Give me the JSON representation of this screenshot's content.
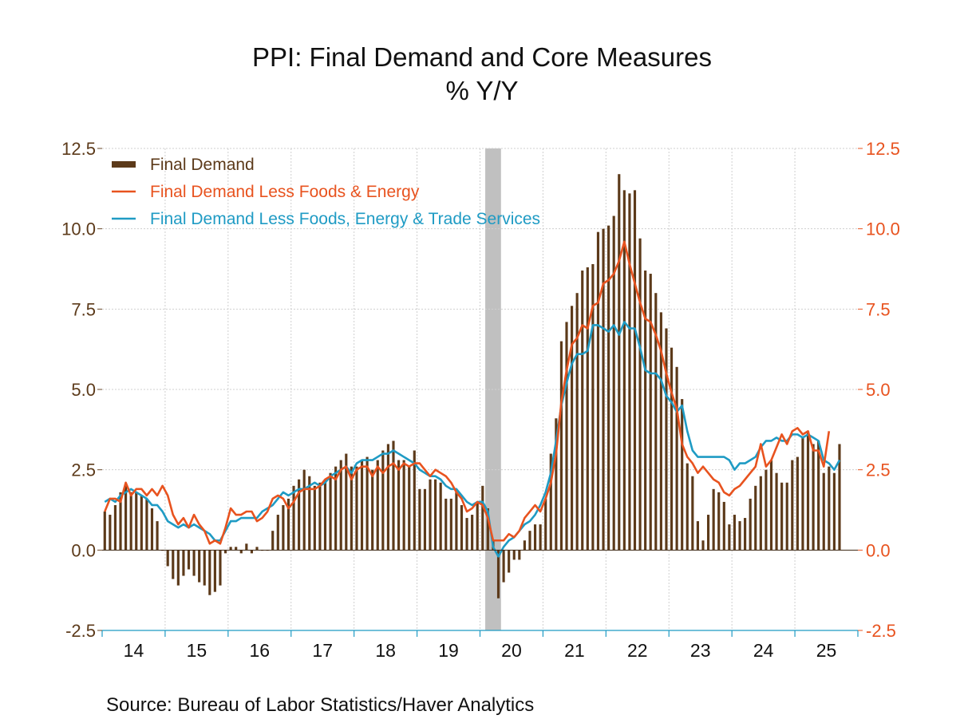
{
  "chart_data": {
    "type": "bar",
    "title": "PPI: Final Demand and Core Measures",
    "subtitle": "% Y/Y",
    "source": "Source:  Bureau of Labor Statistics/Haver Analytics",
    "ylim": [
      -2.5,
      12.5
    ],
    "yticks": [
      "12.5",
      "10.0",
      "7.5",
      "5.0",
      "2.5",
      "0.0",
      "-2.5"
    ],
    "yticks_right": [
      "12.5",
      "10.0",
      "7.5",
      "5.0",
      "2.5",
      "0.0",
      "-2.5"
    ],
    "x_labels": [
      "14",
      "15",
      "16",
      "17",
      "18",
      "19",
      "20",
      "21",
      "22",
      "23",
      "24",
      "25"
    ],
    "grid": true,
    "legend_position": "top-left",
    "start_month": "2014-01",
    "recession_shading": {
      "start": "2020-02",
      "end": "2020-04"
    },
    "colors": {
      "bars": "#5c3a1a",
      "core": "#e8531f",
      "supercore": "#1f9bc4",
      "recession": "#c0c0c0",
      "left_axis_text": "#5c3a1a",
      "right_axis_text": "#e8531f"
    },
    "series": [
      {
        "name": "Final Demand",
        "type": "bar",
        "values": [
          1.2,
          1.1,
          1.4,
          1.8,
          2.0,
          1.8,
          1.8,
          1.7,
          1.6,
          1.3,
          0.9,
          0.0,
          -0.5,
          -0.9,
          -1.1,
          -0.8,
          -0.6,
          -0.8,
          -1.0,
          -1.1,
          -1.4,
          -1.3,
          -1.1,
          -0.1,
          0.1,
          0.1,
          -0.1,
          0.2,
          -0.1,
          0.1,
          0.0,
          0.0,
          0.6,
          1.1,
          1.4,
          1.6,
          2.0,
          2.2,
          2.5,
          2.3,
          2.0,
          2.1,
          2.2,
          2.4,
          2.6,
          2.8,
          3.0,
          2.6,
          2.6,
          2.8,
          2.9,
          2.5,
          2.8,
          3.1,
          3.3,
          3.4,
          2.8,
          2.8,
          2.6,
          3.1,
          1.9,
          1.9,
          2.2,
          2.2,
          2.1,
          1.6,
          1.6,
          1.8,
          1.4,
          1.0,
          1.1,
          1.5,
          2.0,
          1.3,
          0.3,
          -1.5,
          -1.0,
          -0.7,
          -0.3,
          -0.3,
          0.3,
          0.6,
          0.8,
          0.8,
          1.6,
          3.0,
          4.1,
          6.5,
          7.1,
          7.6,
          8.0,
          8.7,
          8.8,
          8.9,
          9.9,
          10.0,
          10.1,
          10.4,
          11.7,
          11.2,
          11.1,
          11.2,
          9.7,
          8.7,
          8.6,
          8.0,
          7.4,
          6.9,
          6.3,
          5.7,
          4.7,
          2.7,
          2.3,
          0.9,
          0.3,
          1.1,
          1.9,
          1.8,
          1.5,
          0.8,
          1.1,
          0.9,
          1.0,
          1.6,
          2.0,
          2.3,
          2.5,
          2.8,
          2.4,
          2.1,
          2.1,
          2.8,
          2.9,
          3.5,
          3.7,
          3.3,
          3.4,
          2.4,
          2.6,
          2.4,
          3.3
        ]
      },
      {
        "name": "Final Demand Less Foods & Energy",
        "type": "line",
        "values": [
          1.2,
          1.6,
          1.6,
          1.5,
          2.1,
          1.7,
          1.9,
          1.9,
          1.7,
          1.9,
          1.7,
          2.0,
          1.7,
          1.1,
          0.8,
          1.0,
          0.7,
          1.1,
          0.8,
          0.6,
          0.2,
          0.3,
          0.2,
          0.7,
          1.3,
          1.1,
          1.1,
          1.2,
          1.2,
          0.9,
          1.0,
          1.2,
          1.6,
          1.7,
          1.6,
          1.3,
          1.5,
          1.8,
          1.9,
          1.9,
          1.9,
          2.0,
          2.2,
          2.3,
          2.2,
          2.5,
          2.6,
          2.2,
          2.5,
          2.6,
          2.6,
          2.3,
          2.6,
          2.4,
          2.6,
          2.7,
          2.5,
          2.7,
          2.6,
          2.7,
          2.7,
          2.5,
          2.3,
          2.5,
          2.4,
          2.3,
          2.1,
          1.8,
          1.6,
          1.2,
          1.3,
          1.5,
          1.4,
          1.0,
          0.3,
          0.3,
          0.3,
          0.5,
          0.4,
          0.6,
          1.0,
          1.2,
          1.4,
          1.2,
          1.6,
          2.1,
          3.0,
          4.6,
          5.6,
          6.4,
          6.6,
          7.0,
          6.9,
          7.6,
          7.7,
          8.3,
          8.4,
          8.6,
          9.0,
          9.6,
          8.9,
          8.3,
          7.7,
          7.2,
          7.1,
          6.7,
          6.2,
          5.5,
          4.9,
          4.4,
          3.3,
          2.9,
          2.7,
          2.4,
          2.6,
          2.4,
          2.2,
          2.1,
          1.8,
          1.7,
          1.9,
          2.0,
          2.2,
          2.4,
          2.6,
          3.3,
          2.6,
          2.8,
          3.2,
          3.6,
          3.3,
          3.7,
          3.8,
          3.6,
          3.7,
          3.1,
          3.1,
          2.6,
          3.7
        ]
      },
      {
        "name": "Final Demand Less Foods, Energy & Trade Services",
        "type": "line",
        "values": [
          1.5,
          1.6,
          1.5,
          1.7,
          1.8,
          1.9,
          1.8,
          1.7,
          1.6,
          1.4,
          1.4,
          1.2,
          0.9,
          0.8,
          0.7,
          0.8,
          0.7,
          0.8,
          0.7,
          0.6,
          0.5,
          0.3,
          0.3,
          0.6,
          0.9,
          0.9,
          1.0,
          1.0,
          1.0,
          1.0,
          1.2,
          1.3,
          1.4,
          1.6,
          1.8,
          1.7,
          1.8,
          1.9,
          1.9,
          2.0,
          2.1,
          2.0,
          2.1,
          2.3,
          2.4,
          2.5,
          2.6,
          2.4,
          2.7,
          2.8,
          2.8,
          2.8,
          2.9,
          3.0,
          3.0,
          3.1,
          3.0,
          2.9,
          2.8,
          2.7,
          2.5,
          2.4,
          2.3,
          2.3,
          2.2,
          2.0,
          1.9,
          1.9,
          1.7,
          1.5,
          1.4,
          1.5,
          1.5,
          1.2,
          0.1,
          -0.2,
          0.1,
          0.3,
          0.4,
          0.6,
          0.8,
          0.9,
          1.1,
          1.4,
          1.8,
          2.4,
          3.4,
          4.5,
          5.2,
          5.8,
          6.1,
          6.1,
          6.2,
          7.0,
          7.0,
          6.9,
          6.8,
          7.0,
          6.7,
          7.1,
          6.9,
          6.9,
          6.3,
          5.6,
          5.5,
          5.5,
          5.3,
          4.8,
          4.6,
          4.3,
          4.5,
          3.7,
          3.1,
          2.9,
          2.9,
          2.9,
          2.9,
          2.9,
          2.9,
          2.8,
          2.5,
          2.7,
          2.7,
          2.8,
          2.9,
          3.2,
          3.4,
          3.4,
          3.5,
          3.4,
          3.4,
          3.6,
          3.6,
          3.5,
          3.6,
          3.5,
          3.4,
          2.8,
          2.7,
          2.5,
          2.8
        ]
      }
    ]
  }
}
